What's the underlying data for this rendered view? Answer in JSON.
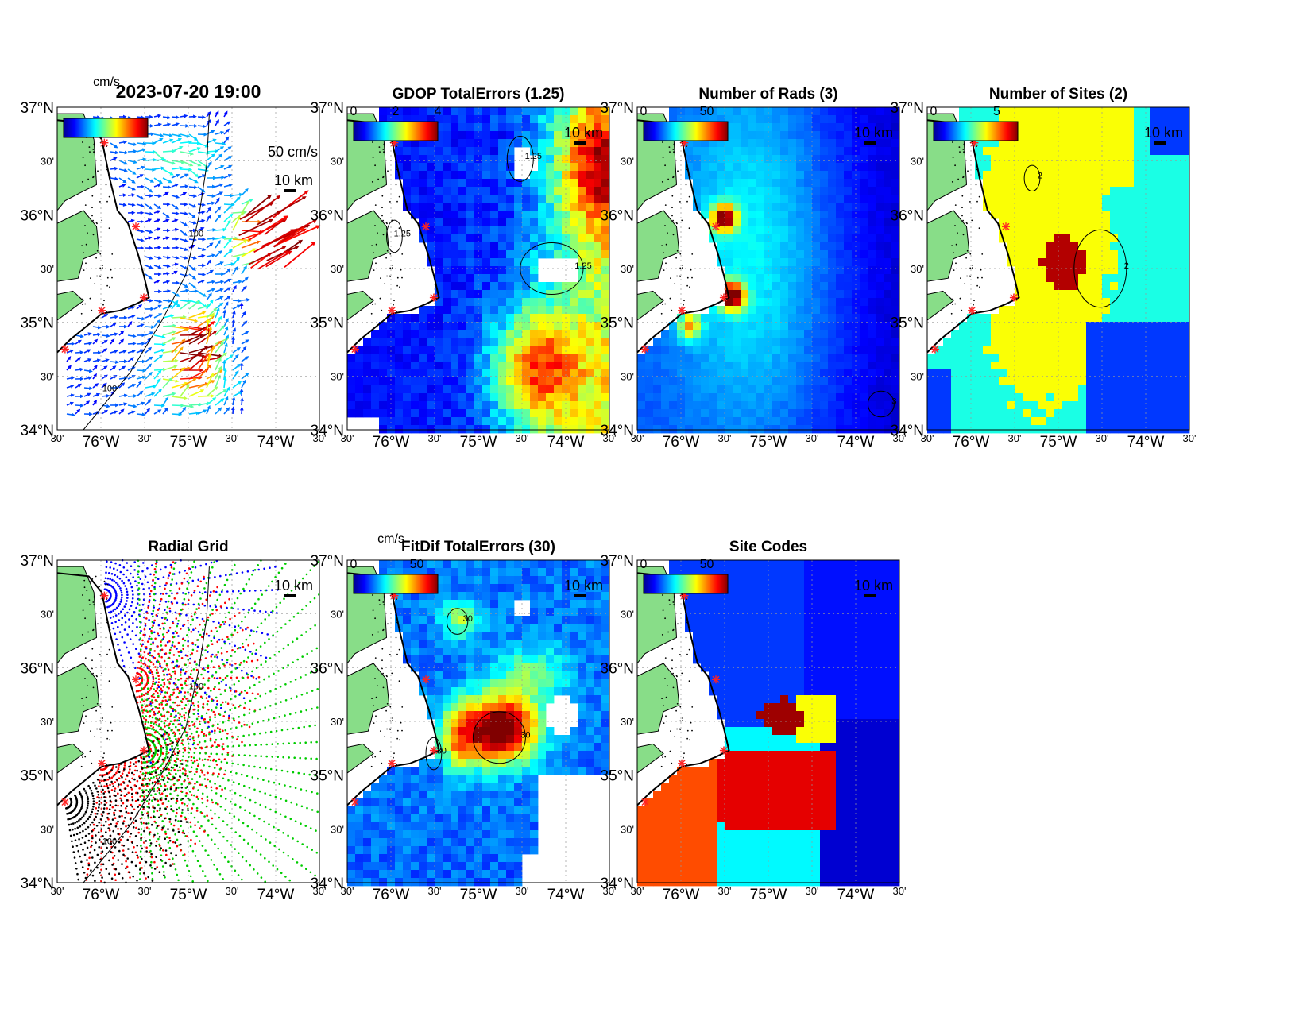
{
  "figure": {
    "timestamp_title": "2023-07-20 19:00",
    "vector_unit": "cm/s",
    "vector_scale_label": "50 cm/s",
    "scale_bar_label": "10 km",
    "contour_label": "100"
  },
  "axes": {
    "lat_ticks": [
      "37°N",
      "30'",
      "36°N",
      "30'",
      "35°N",
      "30'",
      "34°N"
    ],
    "lon_ticks": [
      "30'",
      "76°W",
      "30'",
      "75°W",
      "30'",
      "74°W",
      "30'"
    ]
  },
  "panels": [
    {
      "id": "currents",
      "title": "",
      "colorbar_unit": "cm/s",
      "colorbar_ticks": [],
      "contour_text": "100"
    },
    {
      "id": "gdop",
      "title": "GDOP TotalErrors (1.25)",
      "colorbar_unit": "",
      "colorbar_ticks": [
        "0",
        "2",
        "4"
      ],
      "contour_text": "1.25"
    },
    {
      "id": "nrads",
      "title": "Number of Rads (3)",
      "colorbar_unit": "",
      "colorbar_ticks": [
        "0",
        "50"
      ],
      "contour_text": "3"
    },
    {
      "id": "nsites",
      "title": "Number of Sites (2)",
      "colorbar_unit": "",
      "colorbar_ticks": [
        "0",
        "5"
      ],
      "contour_text": "2"
    },
    {
      "id": "radial",
      "title": "Radial Grid",
      "colorbar_unit": "",
      "colorbar_ticks": [],
      "contour_text": "100"
    },
    {
      "id": "fitdif",
      "title": "FitDif TotalErrors (30)",
      "colorbar_unit": "cm/s",
      "colorbar_ticks": [
        "0",
        "50"
      ],
      "contour_text": "30"
    },
    {
      "id": "sitecodes",
      "title": "Site Codes",
      "colorbar_unit": "",
      "colorbar_ticks": [
        "0",
        "50"
      ],
      "contour_text": ""
    }
  ],
  "map_extent": {
    "lon_min": -76.5,
    "lon_max": -73.5,
    "lat_min": 34,
    "lat_max": 37
  },
  "colors": {
    "land": "#88dd88",
    "site_marker": "#ff2222",
    "contour": "#000000"
  }
}
